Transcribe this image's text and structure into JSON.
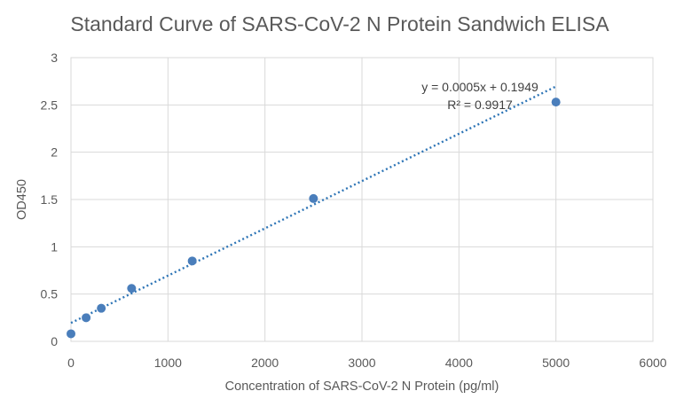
{
  "chart_data": {
    "type": "scatter",
    "title": "Standard Curve of SARS-CoV-2 N Protein  Sandwich ELISA",
    "xlabel": "Concentration of SARS-CoV-2 N Protein (pg/ml)",
    "ylabel": "OD450",
    "xlim": [
      0,
      6000
    ],
    "ylim": [
      0,
      3
    ],
    "x_ticks": [
      "0",
      "1000",
      "2000",
      "3000",
      "4000",
      "5000",
      "6000"
    ],
    "y_ticks": [
      "0",
      "0.5",
      "1",
      "1.5",
      "2",
      "2.5",
      "3"
    ],
    "grid": "vertical and horizontal major gridlines",
    "points": [
      {
        "x": 0,
        "y": 0.08
      },
      {
        "x": 156.25,
        "y": 0.25
      },
      {
        "x": 312.5,
        "y": 0.35
      },
      {
        "x": 625,
        "y": 0.56
      },
      {
        "x": 1250,
        "y": 0.85
      },
      {
        "x": 2500,
        "y": 1.51
      },
      {
        "x": 5000,
        "y": 2.53
      }
    ],
    "trendline": {
      "type": "linear",
      "slope": 0.0005,
      "intercept": 0.1949,
      "x_range": [
        0,
        5000
      ],
      "equation_label": "y = 0.0005x + 0.1949",
      "r2_label": "R² = 0.9917"
    },
    "colors": {
      "marker": "#4a7ebb",
      "trendline": "#2e75b6",
      "grid": "#d9d9d9",
      "text": "#595959"
    }
  }
}
